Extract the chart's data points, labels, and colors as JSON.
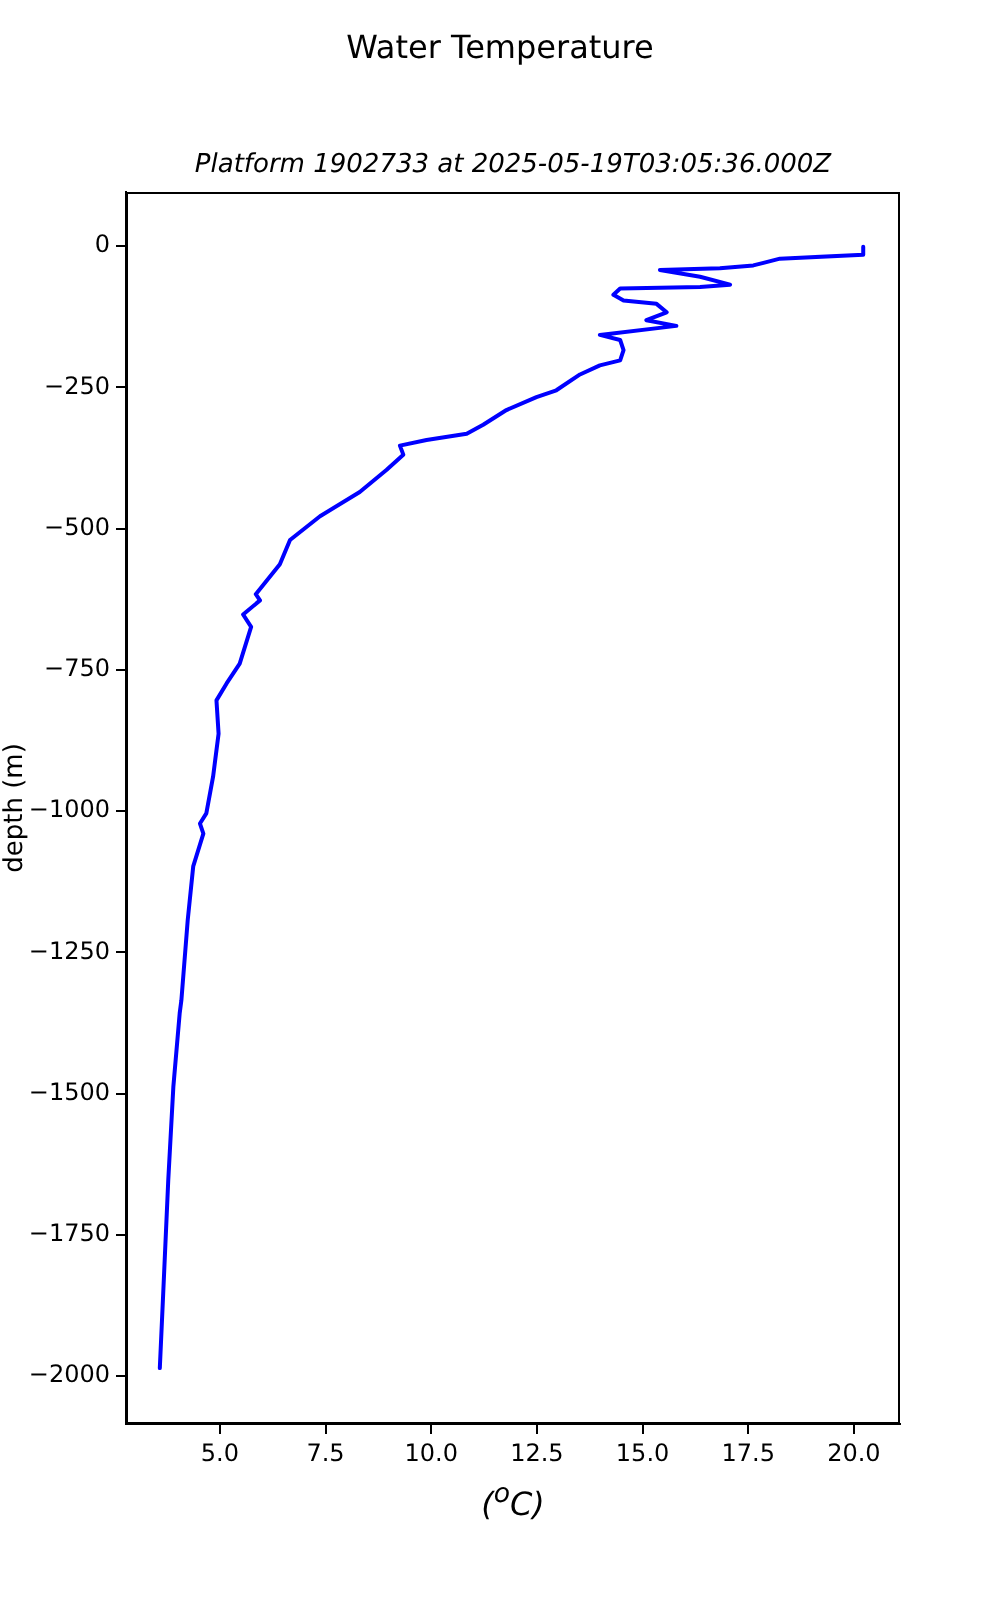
{
  "chart_data": {
    "type": "line",
    "title": "Water Temperature",
    "subtitle": "Platform 1902733 at 2025-05-19T03:05:36.000Z",
    "xlabel": "($^{o}$C)",
    "ylabel": "depth (m)",
    "xlim": [
      2.78,
      21.09
    ],
    "ylim": [
      -2085,
      96
    ],
    "xticks": [
      {
        "value": 5,
        "label": "5.0"
      },
      {
        "value": 7.5,
        "label": "7.5"
      },
      {
        "value": 10,
        "label": "10.0"
      },
      {
        "value": 12.5,
        "label": "12.5"
      },
      {
        "value": 15,
        "label": "15.0"
      },
      {
        "value": 17.5,
        "label": "17.5"
      },
      {
        "value": 20,
        "label": "20.0"
      }
    ],
    "yticks": [
      0,
      {
        "value": -250,
        "label": "−250"
      },
      {
        "value": -500,
        "label": "−500"
      },
      {
        "value": -750,
        "label": "−750"
      },
      {
        "value": -1000,
        "label": "−1000"
      },
      {
        "value": -1250,
        "label": "−1250"
      },
      {
        "value": -1500,
        "label": "−1500"
      },
      {
        "value": -1750,
        "label": "−1750"
      },
      {
        "value": -2000,
        "label": "−2000"
      }
    ],
    "marker": "none",
    "line_style": "solid",
    "series": [
      {
        "color": "#0000ff",
        "x": [
          20.22,
          20.22,
          18.25,
          17.62,
          16.83,
          15.41,
          16.36,
          17.07,
          16.36,
          14.47,
          14.31,
          14.55,
          15.33,
          15.57,
          15.09,
          15.8,
          13.99,
          14.47,
          14.55,
          14.47,
          13.99,
          13.52,
          12.96,
          12.49,
          11.78,
          11.23,
          10.84,
          9.89,
          9.26,
          9.34,
          8.94,
          8.31,
          7.37,
          6.66,
          6.42,
          5.85,
          5.95,
          5.55,
          5.74,
          5.47,
          5.16,
          4.92,
          4.97,
          4.84,
          4.68,
          4.53,
          4.61,
          4.37,
          4.24,
          4.09,
          4.05,
          3.9,
          3.78,
          3.66,
          3.58
        ],
        "values": [
          -1,
          -15,
          -22,
          -34,
          -39,
          -42,
          -54,
          -68,
          -72,
          -75,
          -86,
          -96,
          -102,
          -117,
          -131,
          -141,
          -157,
          -166,
          -184,
          -202,
          -211,
          -227,
          -255,
          -267,
          -290,
          -316,
          -332,
          -343,
          -353,
          -369,
          -396,
          -435,
          -478,
          -520,
          -563,
          -616,
          -627,
          -652,
          -674,
          -739,
          -774,
          -804,
          -863,
          -939,
          -1004,
          -1022,
          -1040,
          -1098,
          -1193,
          -1335,
          -1358,
          -1488,
          -1653,
          -1854,
          -1986
        ]
      }
    ]
  }
}
